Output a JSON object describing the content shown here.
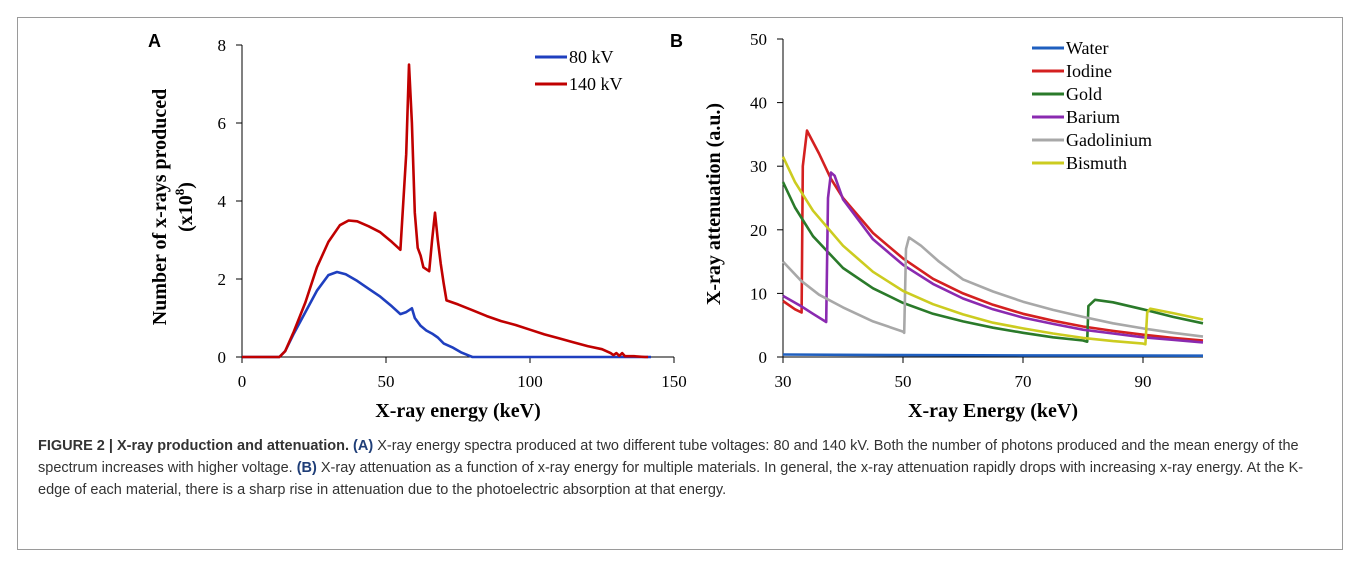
{
  "figure": {
    "label": "FIGURE 2 | X-ray production and attenuation.",
    "caption_a_label": "(A)",
    "caption_a_text": " X-ray energy spectra produced at two different tube voltages: 80 and 140 kV. Both the number of photons produced and the mean energy of the spectrum increases with higher voltage. ",
    "caption_b_label": "(B)",
    "caption_b_text": " X-ray attenuation as a function of x-ray energy for multiple materials. In general, the x-ray attenuation rapidly drops with increasing x-ray energy. At the K-edge of each material, there is a sharp rise in attenuation due to the photoelectric absorption at that energy."
  },
  "chart_data": [
    {
      "panel": "A",
      "type": "line",
      "title": "",
      "xlabel": "X-ray energy (keV)",
      "ylabel": "Number of x-rays produced",
      "ylabel_unit_base": "(x10",
      "ylabel_unit_exp": "8",
      "ylabel_unit_close": ")",
      "xlim": [
        0,
        150
      ],
      "ylim": [
        0,
        8
      ],
      "xticks": [
        0,
        50,
        100,
        150
      ],
      "yticks": [
        0,
        2,
        4,
        6,
        8
      ],
      "grid": false,
      "legend": "top-right",
      "series": [
        {
          "name": "80 kV",
          "color": "#1f3fbf",
          "points": [
            [
              0,
              0
            ],
            [
              13,
              0
            ],
            [
              15,
              0.15
            ],
            [
              18,
              0.6
            ],
            [
              22,
              1.15
            ],
            [
              26,
              1.7
            ],
            [
              30,
              2.1
            ],
            [
              33,
              2.18
            ],
            [
              36,
              2.12
            ],
            [
              40,
              1.95
            ],
            [
              44,
              1.75
            ],
            [
              48,
              1.55
            ],
            [
              52,
              1.3
            ],
            [
              55,
              1.1
            ],
            [
              57,
              1.15
            ],
            [
              59,
              1.25
            ],
            [
              60,
              1.0
            ],
            [
              62,
              0.8
            ],
            [
              64,
              0.68
            ],
            [
              66,
              0.6
            ],
            [
              68,
              0.5
            ],
            [
              70,
              0.35
            ],
            [
              73,
              0.25
            ],
            [
              76,
              0.12
            ],
            [
              79,
              0.03
            ],
            [
              80,
              0
            ],
            [
              142,
              0
            ]
          ]
        },
        {
          "name": "140 kV",
          "color": "#c00000",
          "points": [
            [
              0,
              0
            ],
            [
              13,
              0
            ],
            [
              15,
              0.15
            ],
            [
              18,
              0.65
            ],
            [
              22,
              1.4
            ],
            [
              26,
              2.3
            ],
            [
              30,
              2.95
            ],
            [
              34,
              3.38
            ],
            [
              37,
              3.5
            ],
            [
              40,
              3.48
            ],
            [
              44,
              3.35
            ],
            [
              48,
              3.2
            ],
            [
              52,
              2.95
            ],
            [
              55,
              2.75
            ],
            [
              57,
              5.2
            ],
            [
              58,
              7.5
            ],
            [
              59,
              6.0
            ],
            [
              60,
              3.7
            ],
            [
              61,
              2.8
            ],
            [
              62,
              2.6
            ],
            [
              63,
              2.3
            ],
            [
              65,
              2.2
            ],
            [
              66,
              3.0
            ],
            [
              67,
              3.7
            ],
            [
              68,
              3.0
            ],
            [
              69,
              2.4
            ],
            [
              70,
              1.9
            ],
            [
              71,
              1.45
            ],
            [
              75,
              1.35
            ],
            [
              80,
              1.2
            ],
            [
              85,
              1.05
            ],
            [
              90,
              0.92
            ],
            [
              95,
              0.82
            ],
            [
              100,
              0.7
            ],
            [
              105,
              0.58
            ],
            [
              110,
              0.48
            ],
            [
              115,
              0.38
            ],
            [
              120,
              0.28
            ],
            [
              125,
              0.2
            ],
            [
              128,
              0.1
            ],
            [
              129,
              0.05
            ],
            [
              130,
              0.1
            ],
            [
              131,
              0.03
            ],
            [
              132,
              0.1
            ],
            [
              133,
              0.02
            ],
            [
              136,
              0.02
            ],
            [
              140,
              0
            ],
            [
              141,
              0
            ]
          ]
        }
      ]
    },
    {
      "panel": "B",
      "type": "line",
      "title": "",
      "xlabel": "X-ray Energy (keV)",
      "ylabel": "X-ray attenuation (a.u.)",
      "xlim": [
        30,
        100
      ],
      "ylim": [
        0,
        50
      ],
      "xticks": [
        30,
        50,
        70,
        90
      ],
      "yticks": [
        0,
        10,
        20,
        30,
        40,
        50
      ],
      "grid": false,
      "legend": "top-right",
      "series": [
        {
          "name": "Water",
          "color": "#1f5fbf",
          "points": [
            [
              30,
              0.4
            ],
            [
              50,
              0.3
            ],
            [
              70,
              0.25
            ],
            [
              100,
              0.2
            ]
          ]
        },
        {
          "name": "Iodine",
          "color": "#d42020",
          "points": [
            [
              30,
              8.8
            ],
            [
              32,
              7.5
            ],
            [
              33.1,
              7.0
            ],
            [
              33.3,
              30
            ],
            [
              34,
              35.6
            ],
            [
              36,
              32
            ],
            [
              38,
              28
            ],
            [
              40,
              25
            ],
            [
              45,
              19.5
            ],
            [
              50,
              15.5
            ],
            [
              55,
              12.3
            ],
            [
              60,
              10.0
            ],
            [
              65,
              8.2
            ],
            [
              70,
              6.8
            ],
            [
              75,
              5.7
            ],
            [
              80,
              4.8
            ],
            [
              85,
              4.1
            ],
            [
              90,
              3.5
            ],
            [
              95,
              3.0
            ],
            [
              100,
              2.6
            ]
          ]
        },
        {
          "name": "Gold",
          "color": "#2a7a2a",
          "points": [
            [
              30,
              27.5
            ],
            [
              32,
              23.5
            ],
            [
              35,
              19
            ],
            [
              40,
              14
            ],
            [
              45,
              10.8
            ],
            [
              50,
              8.5
            ],
            [
              55,
              6.8
            ],
            [
              60,
              5.6
            ],
            [
              65,
              4.6
            ],
            [
              70,
              3.8
            ],
            [
              75,
              3.1
            ],
            [
              80,
              2.6
            ],
            [
              80.7,
              2.4
            ],
            [
              80.9,
              8.0
            ],
            [
              82,
              9.0
            ],
            [
              85,
              8.6
            ],
            [
              90,
              7.5
            ],
            [
              95,
              6.3
            ],
            [
              100,
              5.3
            ]
          ]
        },
        {
          "name": "Barium",
          "color": "#8a2ab0",
          "points": [
            [
              30,
              9.6
            ],
            [
              33,
              8.0
            ],
            [
              35,
              6.8
            ],
            [
              37.2,
              5.5
            ],
            [
              37.5,
              25
            ],
            [
              38,
              29
            ],
            [
              38.6,
              28.5
            ],
            [
              40,
              24.8
            ],
            [
              45,
              18.5
            ],
            [
              50,
              14.5
            ],
            [
              55,
              11.5
            ],
            [
              60,
              9.2
            ],
            [
              65,
              7.5
            ],
            [
              70,
              6.2
            ],
            [
              75,
              5.2
            ],
            [
              80,
              4.3
            ],
            [
              85,
              3.7
            ],
            [
              90,
              3.1
            ],
            [
              95,
              2.7
            ],
            [
              100,
              2.3
            ]
          ]
        },
        {
          "name": "Gadolinium",
          "color": "#a8a8a8",
          "points": [
            [
              30,
              15
            ],
            [
              33,
              12
            ],
            [
              36,
              9.8
            ],
            [
              40,
              7.8
            ],
            [
              45,
              5.6
            ],
            [
              50,
              4.0
            ],
            [
              50.2,
              3.8
            ],
            [
              50.5,
              17
            ],
            [
              51,
              18.8
            ],
            [
              53,
              17.5
            ],
            [
              56,
              15
            ],
            [
              60,
              12.2
            ],
            [
              65,
              10.3
            ],
            [
              70,
              8.7
            ],
            [
              75,
              7.4
            ],
            [
              80,
              6.3
            ],
            [
              85,
              5.3
            ],
            [
              90,
              4.5
            ],
            [
              95,
              3.8
            ],
            [
              100,
              3.2
            ]
          ]
        },
        {
          "name": "Bismuth",
          "color": "#cccc20",
          "points": [
            [
              30,
              31.5
            ],
            [
              32,
              27.5
            ],
            [
              35,
              23
            ],
            [
              40,
              17.5
            ],
            [
              45,
              13.4
            ],
            [
              50,
              10.4
            ],
            [
              55,
              8.3
            ],
            [
              60,
              6.7
            ],
            [
              65,
              5.4
            ],
            [
              70,
              4.5
            ],
            [
              75,
              3.7
            ],
            [
              80,
              3.0
            ],
            [
              85,
              2.5
            ],
            [
              90,
              2.1
            ],
            [
              90.4,
              2.0
            ],
            [
              90.7,
              7.0
            ],
            [
              91.2,
              7.6
            ],
            [
              95,
              6.9
            ],
            [
              100,
              5.9
            ]
          ]
        }
      ]
    }
  ]
}
